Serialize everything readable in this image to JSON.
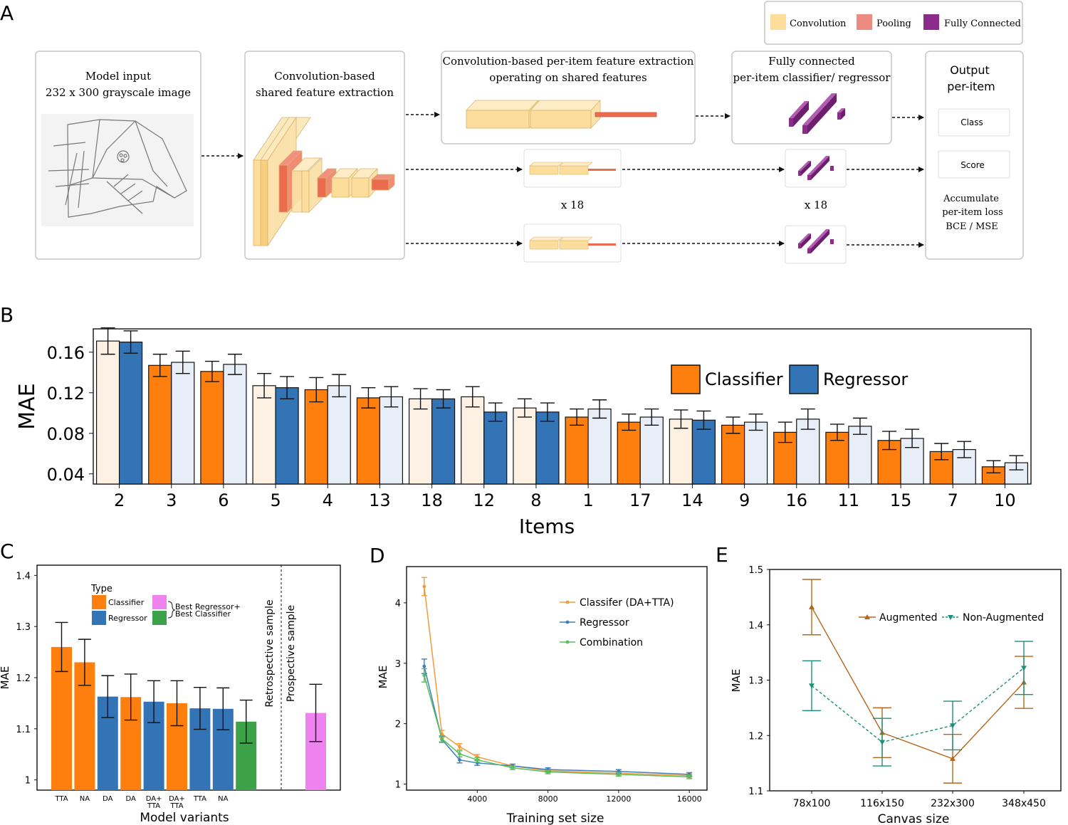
{
  "panel_labels": {
    "a": "A",
    "b": "B",
    "c": "C",
    "d": "D",
    "e": "E"
  },
  "colors": {
    "convolution": "#fcdd9c",
    "pooling": "#ec8b82",
    "fully_connected": "#8b2c8b",
    "classifier": "#ff7f0e",
    "regressor": "#3274b5",
    "classifier_light": "#fdf1e4",
    "regressor_light": "#e8eef7",
    "best_regressor": "#ee82ee",
    "best_classifier": "#3da14a",
    "d_classifier": "#f39a3a",
    "d_regressor": "#3c7fc0",
    "d_combination": "#5bbd5b",
    "e_augmented": "#b5651d",
    "e_non_augmented": "#1a9077"
  },
  "architecture": {
    "legend": {
      "convolution": "Convolution",
      "pooling": "Pooling",
      "fully_connected": "Fully Connected"
    },
    "input_title_1": "Model input",
    "input_title_2": "232 x 300 grayscale image",
    "shared_title_1": "Convolution-based",
    "shared_title_2": "shared feature extraction",
    "peritem_title_1": "Convolution-based per-item feature extraction",
    "peritem_title_2": "operating on shared features",
    "fc_title_1": "Fully connected",
    "fc_title_2": "per-item classifier/ regressor",
    "output_title_1": "Output",
    "output_title_2": "per-item",
    "class_label": "Class",
    "score_label": "Score",
    "accum_1": "Accumulate",
    "accum_2": "per-item loss",
    "accum_3": "BCE / MSE",
    "repeat_left": "x 18",
    "repeat_right": "x 18"
  },
  "chart_data": [
    {
      "id": "B",
      "type": "bar",
      "title": "",
      "xlabel": "Items",
      "ylabel": "MAE",
      "ylim": [
        0.03,
        0.183
      ],
      "yticks": [
        0.04,
        0.08,
        0.12,
        0.16
      ],
      "ytick_labels": [
        "0.04",
        "0.08",
        "0.12",
        "0.16"
      ],
      "categories": [
        "2",
        "3",
        "6",
        "5",
        "4",
        "13",
        "18",
        "12",
        "8",
        "1",
        "17",
        "14",
        "9",
        "16",
        "11",
        "15",
        "7",
        "10"
      ],
      "series": [
        {
          "name": "Classifier",
          "values": [
            0.171,
            0.147,
            0.141,
            0.127,
            0.123,
            0.115,
            0.114,
            0.116,
            0.105,
            0.096,
            0.091,
            0.094,
            0.088,
            0.081,
            0.081,
            0.073,
            0.062,
            0.047
          ],
          "errors": [
            0.013,
            0.011,
            0.01,
            0.012,
            0.012,
            0.01,
            0.01,
            0.01,
            0.009,
            0.008,
            0.008,
            0.009,
            0.008,
            0.01,
            0.008,
            0.009,
            0.008,
            0.006
          ],
          "best": [
            false,
            true,
            true,
            false,
            true,
            true,
            false,
            false,
            false,
            true,
            true,
            false,
            true,
            true,
            true,
            true,
            true,
            true
          ]
        },
        {
          "name": "Regressor",
          "values": [
            0.17,
            0.15,
            0.148,
            0.125,
            0.127,
            0.116,
            0.114,
            0.101,
            0.101,
            0.104,
            0.096,
            0.093,
            0.091,
            0.094,
            0.087,
            0.075,
            0.064,
            0.051
          ],
          "errors": [
            0.011,
            0.011,
            0.01,
            0.011,
            0.011,
            0.01,
            0.009,
            0.009,
            0.009,
            0.009,
            0.008,
            0.009,
            0.008,
            0.01,
            0.008,
            0.009,
            0.008,
            0.007
          ],
          "best": [
            true,
            false,
            false,
            true,
            false,
            false,
            true,
            true,
            true,
            false,
            false,
            true,
            false,
            false,
            false,
            false,
            false,
            false
          ]
        }
      ],
      "legend": [
        "Classifier",
        "Regressor"
      ],
      "legend_position": "top-right"
    },
    {
      "id": "C",
      "type": "bar",
      "xlabel": "Model variants",
      "ylabel": "MAE",
      "ylim": [
        0.98,
        1.42
      ],
      "yticks": [
        1,
        1.1,
        1.2,
        1.3,
        1.4
      ],
      "ytick_labels": [
        "1",
        "1.1",
        "1.2",
        "1.3",
        "1.4"
      ],
      "categories": [
        "TTA",
        "NA",
        "DA",
        "DA",
        "DA+\nTTA",
        "DA+\nTTA",
        "TTA",
        "NA",
        ""
      ],
      "values": [
        1.26,
        1.23,
        1.163,
        1.162,
        1.153,
        1.15,
        1.14,
        1.139,
        1.114
      ],
      "errors": [
        0.048,
        0.045,
        0.041,
        0.045,
        0.041,
        0.044,
        0.041,
        0.041,
        0.042
      ],
      "types": [
        "Classifier",
        "Classifier",
        "Regressor",
        "Classifier",
        "Regressor",
        "Classifier",
        "Regressor",
        "Regressor",
        "Best Classifier"
      ],
      "prospective": {
        "value": 1.131,
        "error": 0.056,
        "type": "Best Regressor"
      },
      "legend_title": "Type",
      "legend_classifier": "Classifier",
      "legend_regressor": "Regressor",
      "legend_best_1": "Best Regressor+",
      "legend_best_2": "Best Classifier",
      "retrospective_label": "Retrospective sample",
      "prospective_label": "Prospective sample"
    },
    {
      "id": "D",
      "type": "line",
      "xlabel": "Training set size",
      "ylabel": "MAE",
      "xlim": [
        0,
        17000
      ],
      "ylim": [
        0.9,
        4.6
      ],
      "xticks": [
        4000,
        8000,
        12000,
        16000
      ],
      "yticks": [
        1,
        2,
        3,
        4
      ],
      "x": [
        1000,
        2000,
        3000,
        4000,
        6000,
        8000,
        12000,
        16000
      ],
      "series": [
        {
          "name": "Classifer (DA+TTA)",
          "values": [
            4.27,
            1.83,
            1.62,
            1.45,
            1.3,
            1.22,
            1.18,
            1.14
          ],
          "errors": [
            0.15,
            0.06,
            0.05,
            0.04,
            0.03,
            0.03,
            0.03,
            0.03
          ]
        },
        {
          "name": "Regressor",
          "values": [
            2.95,
            1.74,
            1.4,
            1.35,
            1.3,
            1.24,
            1.21,
            1.16
          ],
          "errors": [
            0.12,
            0.05,
            0.05,
            0.04,
            0.03,
            0.03,
            0.03,
            0.03
          ]
        },
        {
          "name": "Combination",
          "values": [
            2.8,
            1.75,
            1.5,
            1.4,
            1.27,
            1.2,
            1.16,
            1.12
          ],
          "errors": [
            0.11,
            0.05,
            0.05,
            0.04,
            0.03,
            0.03,
            0.03,
            0.03
          ]
        }
      ],
      "legend_position": "top-right"
    },
    {
      "id": "E",
      "type": "line",
      "xlabel": "Canvas size",
      "ylabel": "MAE",
      "ylim": [
        1.1,
        1.5
      ],
      "yticks": [
        1.1,
        1.2,
        1.3,
        1.4,
        1.5
      ],
      "ytick_labels": [
        "1.1",
        "1.2",
        "1.3",
        "1.4",
        "1.5"
      ],
      "categories": [
        "78x100",
        "116x150",
        "232x300",
        "348x450"
      ],
      "series": [
        {
          "name": "Augmented",
          "values": [
            1.432,
            1.205,
            1.158,
            1.296
          ],
          "errors": [
            0.05,
            0.045,
            0.044,
            0.047
          ]
        },
        {
          "name": "Non-Augmented",
          "values": [
            1.29,
            1.188,
            1.218,
            1.322
          ],
          "errors": [
            0.045,
            0.043,
            0.044,
            0.048
          ]
        }
      ],
      "legend_position": "top"
    }
  ]
}
